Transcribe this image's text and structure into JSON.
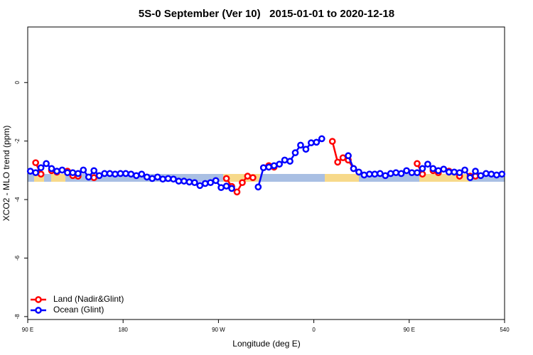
{
  "chart_data": {
    "type": "line",
    "title": "5S-0 September (Ver 10)   2015-01-01 to 2020-12-18",
    "x_label": "Longitude (deg E)",
    "y_label": "XCO2 - MLO trend (ppm)",
    "xlim": [
      90,
      540
    ],
    "ylim": [
      -8.1,
      1.9
    ],
    "xticks": [
      {
        "value": 90,
        "label": "90 E"
      },
      180,
      {
        "value": 270,
        "label": "90 W"
      },
      {
        "value": 360,
        "label": "0"
      },
      {
        "value": 450,
        "label": "90 E"
      },
      540
    ],
    "yticks": [
      0,
      -2,
      -4,
      -6,
      -8
    ],
    "legend": "bottom-left",
    "x": [
      92.5,
      97.5,
      102.5,
      107.5,
      112.5,
      117.5,
      122.5,
      127.5,
      132.5,
      137.5,
      142.5,
      147.5,
      152.5,
      157.5,
      162.5,
      167.5,
      172.5,
      177.5,
      182.5,
      187.5,
      192.5,
      197.5,
      202.5,
      207.5,
      212.5,
      217.5,
      222.5,
      227.5,
      232.5,
      237.5,
      242.5,
      247.5,
      252.5,
      257.5,
      262.5,
      267.5,
      272.5,
      277.5,
      282.5,
      287.5,
      292.5,
      297.5,
      302.5,
      307.5,
      312.5,
      317.5,
      322.5,
      327.5,
      332.5,
      337.5,
      342.5,
      347.5,
      352.5,
      357.5,
      362.5,
      367.5,
      372.5,
      377.5,
      382.5,
      387.5,
      392.5,
      397.5,
      402.5,
      407.5,
      412.5,
      417.5,
      422.5,
      427.5,
      432.5,
      437.5,
      442.5,
      447.5,
      452.5,
      457.5,
      462.5,
      467.5,
      472.5,
      477.5,
      482.5,
      487.5,
      492.5,
      497.5,
      502.5,
      507.5,
      512.5,
      517.5,
      522.5,
      527.5,
      532.5,
      537.5
    ],
    "series": [
      {
        "name": "Land (Nadir&Glint)",
        "color": "#ff0000",
        "values": [
          null,
          -2.74,
          -3.13,
          null,
          -3.01,
          -3.06,
          null,
          -3.03,
          -3.18,
          -3.2,
          null,
          null,
          -3.25,
          null,
          null,
          null,
          null,
          null,
          null,
          null,
          null,
          null,
          null,
          null,
          null,
          null,
          null,
          null,
          null,
          null,
          null,
          null,
          null,
          null,
          null,
          null,
          null,
          -3.28,
          -3.55,
          -3.74,
          -3.42,
          -3.2,
          -3.25,
          null,
          -2.91,
          -2.84,
          -2.89,
          null,
          null,
          null,
          null,
          null,
          null,
          null,
          null,
          null,
          null,
          -2.01,
          -2.72,
          -2.57,
          -2.65,
          -2.94,
          null,
          null,
          null,
          null,
          null,
          null,
          null,
          null,
          null,
          null,
          null,
          -2.77,
          -3.13,
          null,
          -3.01,
          -3.08,
          null,
          -3.03,
          null,
          -3.2,
          null,
          -3.2,
          -3.2,
          null,
          null,
          null,
          null,
          null
        ]
      },
      {
        "name": "Ocean (Glint)",
        "color": "#0000ff",
        "values": [
          -3.03,
          -3.08,
          -2.91,
          -2.77,
          -2.94,
          -3.03,
          -2.99,
          -3.08,
          -3.08,
          -3.11,
          -2.99,
          -3.23,
          -3.01,
          -3.18,
          -3.11,
          -3.11,
          -3.13,
          -3.11,
          -3.11,
          -3.13,
          -3.18,
          -3.13,
          -3.23,
          -3.28,
          -3.23,
          -3.3,
          -3.28,
          -3.3,
          -3.37,
          -3.37,
          -3.4,
          -3.42,
          -3.52,
          -3.45,
          -3.42,
          -3.35,
          -3.59,
          -3.54,
          -3.62,
          null,
          null,
          null,
          null,
          -3.57,
          -2.91,
          -2.89,
          -2.84,
          -2.79,
          -2.65,
          -2.69,
          -2.4,
          -2.14,
          -2.28,
          -2.06,
          -2.04,
          -1.92,
          null,
          null,
          null,
          null,
          -2.5,
          -2.94,
          -3.06,
          -3.16,
          -3.13,
          -3.13,
          -3.11,
          -3.18,
          -3.11,
          -3.08,
          -3.11,
          -3.01,
          -3.08,
          -3.08,
          -2.94,
          -2.79,
          -2.94,
          -3.01,
          -2.96,
          -3.06,
          -3.06,
          -3.08,
          -2.99,
          -3.25,
          -3.03,
          -3.18,
          -3.11,
          -3.13,
          -3.16,
          -3.13
        ]
      }
    ]
  }
}
